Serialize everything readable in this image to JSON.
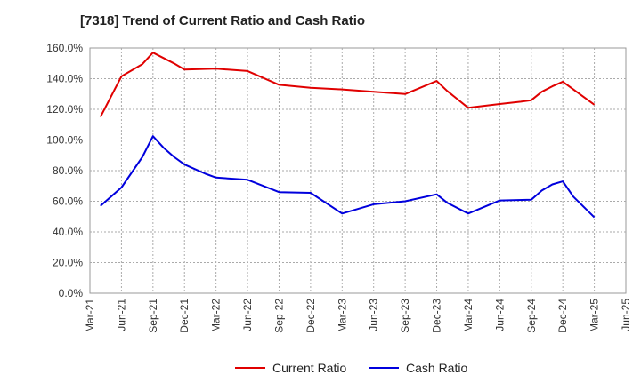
{
  "chart_data": {
    "type": "line",
    "title": "[7318]  Trend of Current Ratio and Cash Ratio",
    "xlabel": "",
    "ylabel": "",
    "ylim": [
      0,
      160
    ],
    "y_ticks": [
      0,
      20,
      40,
      60,
      80,
      100,
      120,
      140,
      160
    ],
    "y_tick_labels": [
      "0.0%",
      "20.0%",
      "40.0%",
      "60.0%",
      "80.0%",
      "100.0%",
      "120.0%",
      "140.0%",
      "160.0%"
    ],
    "x_ticks": [
      0,
      3,
      6,
      9,
      12,
      15,
      18,
      21,
      24,
      27,
      30,
      33,
      36,
      39,
      42,
      45,
      48,
      51
    ],
    "x_tick_labels": [
      "Mar-21",
      "Jun-21",
      "Sep-21",
      "Dec-21",
      "Mar-22",
      "Jun-22",
      "Sep-22",
      "Dec-22",
      "Mar-23",
      "Jun-23",
      "Sep-23",
      "Dec-23",
      "Mar-24",
      "Jun-24",
      "Sep-24",
      "Dec-24",
      "Mar-25",
      "Jun-25"
    ],
    "xlim": [
      0,
      51
    ],
    "grid": true,
    "legend_position": "bottom",
    "series": [
      {
        "name": "Current Ratio",
        "color": "#e00000",
        "x": [
          1,
          3,
          5,
          6,
          8,
          9,
          12,
          15,
          18,
          21,
          24,
          27,
          30,
          33,
          34,
          36,
          39,
          41,
          42,
          43,
          44,
          45,
          46,
          48
        ],
        "values": [
          115,
          141.5,
          149.5,
          157,
          150,
          146,
          146.5,
          145,
          136,
          134,
          133,
          131.5,
          130,
          138.5,
          132,
          121,
          123.5,
          125,
          126,
          131.5,
          135,
          138,
          133,
          123
        ]
      },
      {
        "name": "Cash Ratio",
        "color": "#0000dd",
        "x": [
          1,
          3,
          5,
          6,
          7,
          8,
          9,
          10,
          11,
          12,
          15,
          18,
          21,
          24,
          27,
          30,
          33,
          34,
          36,
          39,
          42,
          43,
          44,
          45,
          46,
          48
        ],
        "values": [
          57,
          69,
          89,
          102.5,
          95,
          89,
          84,
          81,
          78,
          75.5,
          74,
          66,
          65.5,
          52,
          58,
          60,
          64.5,
          59,
          52,
          60.5,
          61,
          67,
          71,
          73,
          63,
          49.5
        ]
      }
    ]
  }
}
